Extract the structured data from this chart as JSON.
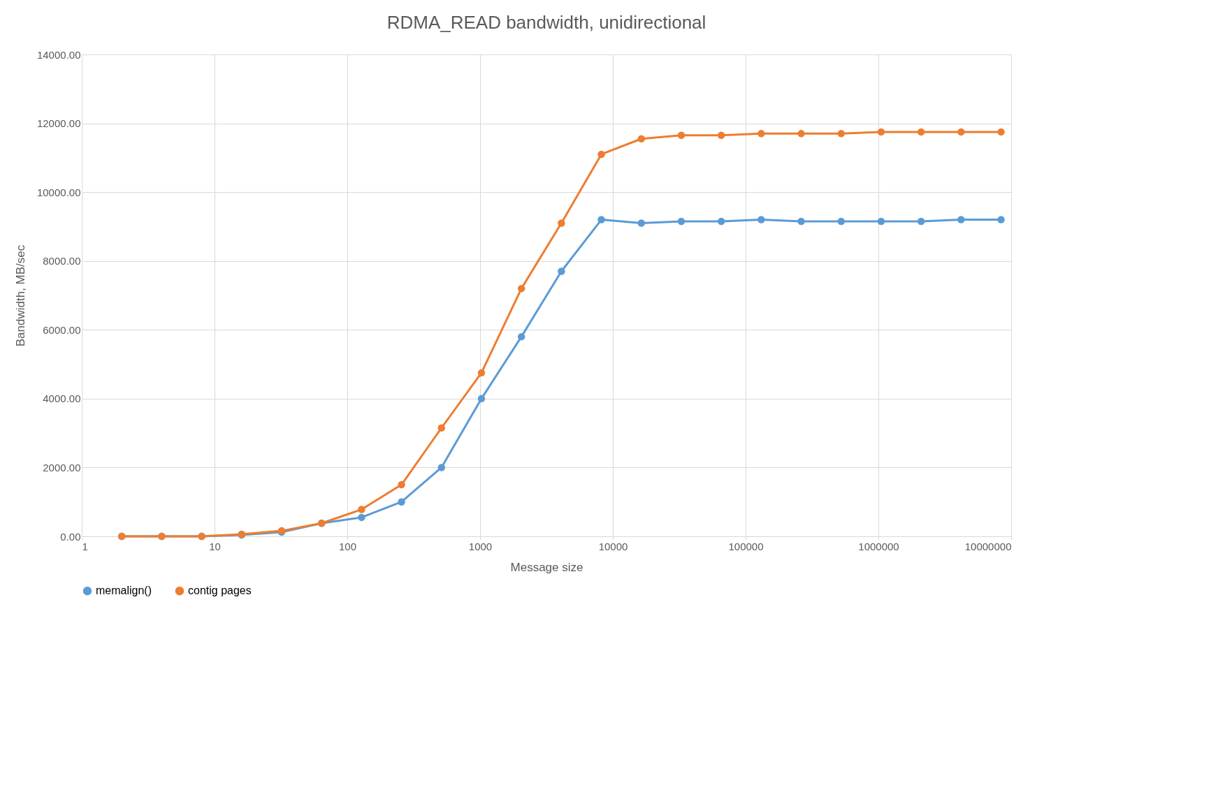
{
  "chart_data": {
    "type": "line",
    "title": "RDMA_READ bandwidth, unidirectional",
    "xlabel": "Message size",
    "ylabel": "Bandwidth, MB/sec",
    "x": [
      2,
      4,
      8,
      16,
      32,
      64,
      128,
      256,
      512,
      1024,
      2048,
      4096,
      8192,
      16384,
      32768,
      65536,
      131072,
      262144,
      524288,
      1048576,
      2097152,
      4194304,
      8388608
    ],
    "series": [
      {
        "name": "memalign()",
        "color": "#5b9bd5",
        "values": [
          0,
          0,
          0,
          40,
          120,
          380,
          550,
          1000,
          2000,
          4000,
          5800,
          7700,
          9200,
          9100,
          9150,
          9150,
          9200,
          9150,
          9150,
          9150,
          9150,
          9200,
          9200
        ]
      },
      {
        "name": "contig pages",
        "color": "#ed7d31",
        "values": [
          0,
          0,
          0,
          60,
          160,
          380,
          780,
          1500,
          3150,
          4750,
          7200,
          9100,
          11100,
          11550,
          11650,
          11650,
          11700,
          11700,
          11700,
          11750,
          11750,
          11750,
          11750
        ]
      }
    ],
    "log": "x",
    "xlim": [
      1,
      10000000
    ],
    "xticks": [
      1,
      10,
      100,
      1000,
      10000,
      100000,
      1000000,
      10000000
    ],
    "ylim": [
      0,
      14000
    ],
    "yticks": [
      {
        "value": 0,
        "label": "0.00"
      },
      {
        "value": 2000,
        "label": "2000.00"
      },
      {
        "value": 4000,
        "label": "4000.00"
      },
      {
        "value": 6000,
        "label": "6000.00"
      },
      {
        "value": 8000,
        "label": "8000.00"
      },
      {
        "value": 10000,
        "label": "10000.00"
      },
      {
        "value": 12000,
        "label": "12000.00"
      },
      {
        "value": 14000,
        "label": "14000.00"
      }
    ],
    "grid": true,
    "legend": "bottom",
    "marker": "circle",
    "line_style": "solid"
  }
}
